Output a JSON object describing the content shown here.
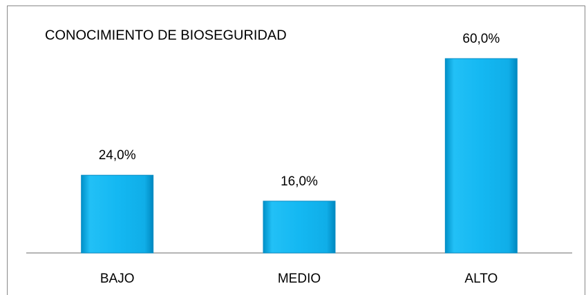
{
  "chart_data": {
    "type": "bar",
    "title": "CONOCIMIENTO DE BIOSEGURIDAD",
    "categories": [
      "BAJO",
      "MEDIO",
      "ALTO"
    ],
    "values": [
      24,
      16,
      60
    ],
    "value_labels": [
      "24,0%",
      "16,0%",
      "60,0%"
    ],
    "color": "#00b0f0"
  }
}
